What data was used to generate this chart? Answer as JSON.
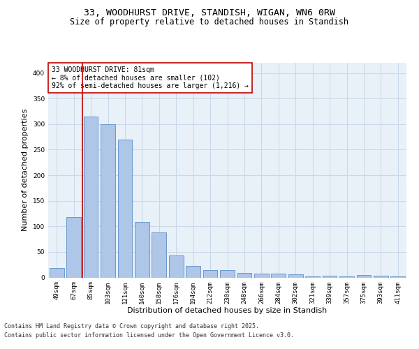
{
  "title_line1": "33, WOODHURST DRIVE, STANDISH, WIGAN, WN6 0RW",
  "title_line2": "Size of property relative to detached houses in Standish",
  "xlabel": "Distribution of detached houses by size in Standish",
  "ylabel": "Number of detached properties",
  "categories": [
    "49sqm",
    "67sqm",
    "85sqm",
    "103sqm",
    "121sqm",
    "140sqm",
    "158sqm",
    "176sqm",
    "194sqm",
    "212sqm",
    "230sqm",
    "248sqm",
    "266sqm",
    "284sqm",
    "302sqm",
    "321sqm",
    "339sqm",
    "357sqm",
    "375sqm",
    "393sqm",
    "411sqm"
  ],
  "values": [
    18,
    118,
    315,
    300,
    270,
    108,
    88,
    43,
    22,
    15,
    15,
    9,
    8,
    7,
    6,
    2,
    3,
    2,
    5,
    3,
    2
  ],
  "bar_color": "#aec6e8",
  "bar_edge_color": "#5b8fc9",
  "highlight_color": "#c00000",
  "annotation_text": "33 WOODHURST DRIVE: 81sqm\n← 8% of detached houses are smaller (102)\n92% of semi-detached houses are larger (1,216) →",
  "annotation_box_color": "#ffffff",
  "annotation_box_edge": "#c00000",
  "vline_x_index": 1,
  "vline_color": "#c00000",
  "ylim": [
    0,
    420
  ],
  "yticks": [
    0,
    50,
    100,
    150,
    200,
    250,
    300,
    350,
    400
  ],
  "grid_color": "#c8d8e8",
  "bg_color": "#e8f0f8",
  "footer_line1": "Contains HM Land Registry data © Crown copyright and database right 2025.",
  "footer_line2": "Contains public sector information licensed under the Open Government Licence v3.0.",
  "title_fontsize": 9.5,
  "subtitle_fontsize": 8.5,
  "axis_label_fontsize": 8,
  "tick_fontsize": 6.5,
  "annotation_fontsize": 7,
  "footer_fontsize": 6
}
